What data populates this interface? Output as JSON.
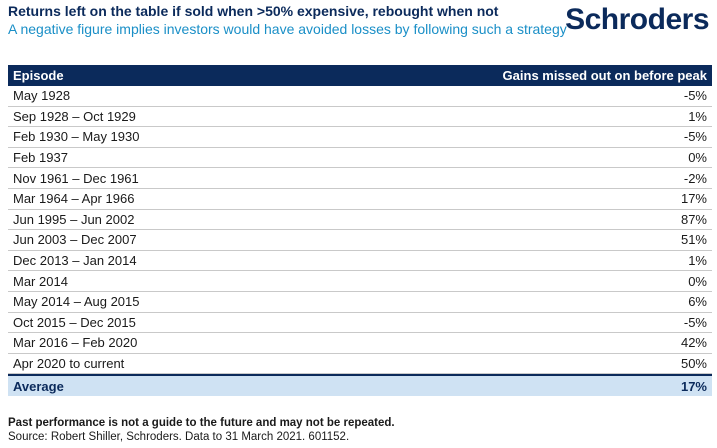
{
  "header": {
    "title": "Returns left on the table if sold when >50% expensive, rebought when not",
    "subtitle": "A negative figure implies investors would have avoided losses by following such a strategy"
  },
  "logo": {
    "text": "Schroders"
  },
  "chart_data": {
    "type": "table",
    "columns": [
      "Episode",
      "Gains missed out on before peak"
    ],
    "rows": [
      {
        "episode": "May 1928",
        "gain": "-5%"
      },
      {
        "episode": "Sep 1928 – Oct 1929",
        "gain": "1%"
      },
      {
        "episode": "Feb 1930 – May 1930",
        "gain": "-5%"
      },
      {
        "episode": "Feb 1937",
        "gain": "0%"
      },
      {
        "episode": "Nov 1961 – Dec 1961",
        "gain": "-2%"
      },
      {
        "episode": "Mar 1964 – Apr 1966",
        "gain": "17%"
      },
      {
        "episode": "Jun 1995 – Jun 2002",
        "gain": "87%"
      },
      {
        "episode": "Jun 2003 – Dec 2007",
        "gain": "51%"
      },
      {
        "episode": "Dec 2013 – Jan 2014",
        "gain": "1%"
      },
      {
        "episode": "Mar 2014",
        "gain": "0%"
      },
      {
        "episode": "May 2014 – Aug 2015",
        "gain": "6%"
      },
      {
        "episode": "Oct 2015 – Dec 2015",
        "gain": "-5%"
      },
      {
        "episode": "Mar 2016 – Feb 2020",
        "gain": "42%"
      },
      {
        "episode": "Apr 2020 to current",
        "gain": "50%"
      }
    ],
    "summary": {
      "label": "Average",
      "value": "17%"
    }
  },
  "footer": {
    "disclaimer": "Past performance is not a guide to the future and may not be repeated.",
    "source": "Source: Robert Shiller, Schroders. Data to 31 March 2021. 601152."
  },
  "colors": {
    "navy": "#0b2a5b",
    "accent_blue": "#1a8fc7",
    "average_bg": "#cfe2f3"
  }
}
